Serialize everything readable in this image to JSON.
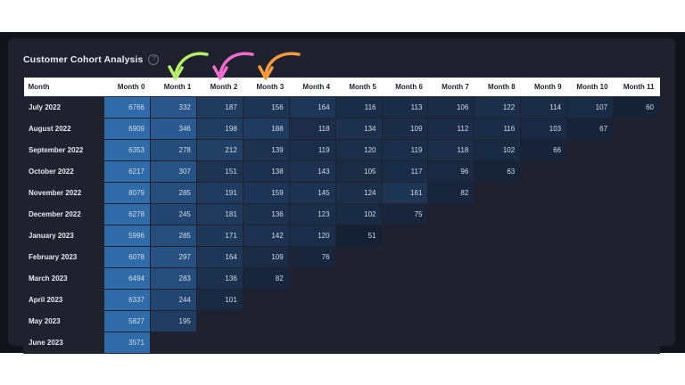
{
  "title": "Customer Cohort Analysis",
  "help_icon": "help-circle-icon",
  "colors": {
    "page_bg": "#11131a",
    "panel_bg": "#1f222e",
    "header_bg": "#ffffff",
    "cell_base": "#0f2846",
    "cell_strong": "#2f6ba8",
    "arrow_green": "#b8f06a",
    "arrow_pink": "#f26cd0",
    "arrow_orange": "#f59a3d"
  },
  "annotations": [
    {
      "name": "green-arrow-icon",
      "points_to": "Month 1"
    },
    {
      "name": "pink-arrow-icon",
      "points_to": "Month 2"
    },
    {
      "name": "orange-arrow-icon",
      "points_to": "Month 3"
    }
  ],
  "columns": [
    "Month",
    "Month 0",
    "Month 1",
    "Month 2",
    "Month 3",
    "Month 4",
    "Month 5",
    "Month 6",
    "Month 7",
    "Month 8",
    "Month 9",
    "Month 10",
    "Month 11"
  ],
  "rows": [
    {
      "label": "July 2022",
      "values": [
        6766,
        332,
        187,
        156,
        164,
        116,
        113,
        106,
        122,
        114,
        107,
        60
      ]
    },
    {
      "label": "August 2022",
      "values": [
        6909,
        346,
        198,
        188,
        118,
        134,
        109,
        112,
        116,
        103,
        67
      ]
    },
    {
      "label": "September 2022",
      "values": [
        6353,
        278,
        212,
        139,
        119,
        120,
        119,
        118,
        102,
        66
      ]
    },
    {
      "label": "October 2022",
      "values": [
        6217,
        307,
        151,
        138,
        143,
        105,
        117,
        96,
        63
      ]
    },
    {
      "label": "November 2022",
      "values": [
        8079,
        285,
        191,
        159,
        145,
        124,
        161,
        82
      ]
    },
    {
      "label": "December 2022",
      "values": [
        6278,
        245,
        181,
        136,
        123,
        102,
        75
      ]
    },
    {
      "label": "January 2023",
      "values": [
        5996,
        285,
        171,
        142,
        120,
        51
      ]
    },
    {
      "label": "February 2023",
      "values": [
        6078,
        297,
        164,
        109,
        76
      ]
    },
    {
      "label": "March 2023",
      "values": [
        6494,
        283,
        136,
        82
      ]
    },
    {
      "label": "April 2023",
      "values": [
        6337,
        244,
        101
      ]
    },
    {
      "label": "May 2023",
      "values": [
        5827,
        195
      ]
    },
    {
      "label": "June 2023",
      "values": [
        3571
      ]
    }
  ]
}
